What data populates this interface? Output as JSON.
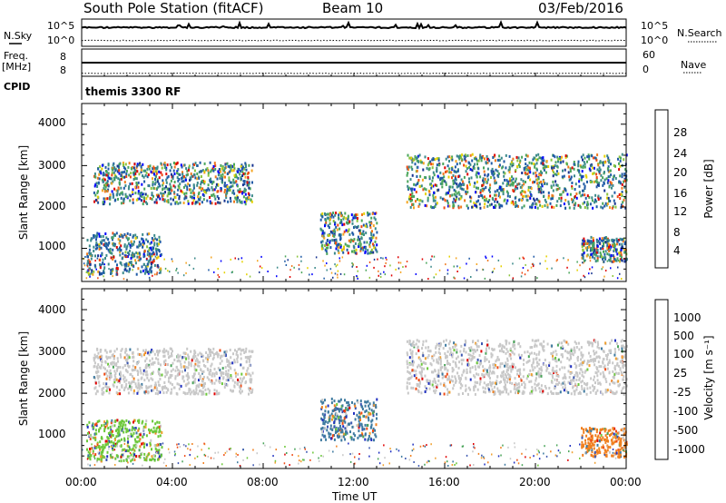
{
  "header": {
    "station": "South Pole Station (fitACF)",
    "beam": "Beam 10",
    "date": "03/Feb/2016"
  },
  "top_panels": {
    "nsky_label": "N.Sky",
    "nsky_tick_top": "10^5",
    "nsky_tick_bottom": "10^0",
    "nsearch_label": "N.Search",
    "nsearch_tick_top": "10^5",
    "nsearch_tick_bottom": "10^0",
    "freq_label": "Freq.",
    "freq_unit": "[MHz]",
    "freq_tick_top": "8",
    "freq_tick_bottom": "8",
    "nave_label": "Nave",
    "nave_tick_top": "60",
    "nave_tick_bottom": "0",
    "cpid_label": "CPID",
    "cpid_value": "themis 3300 RF"
  },
  "chart_data": [
    {
      "type": "heatmap",
      "panel": "power",
      "ylabel": "Slant Range [km]",
      "ylim": [
        200,
        4500
      ],
      "yticks": [
        "4000",
        "3000",
        "2000",
        "1000"
      ],
      "x_tick_labels": [
        "00:00",
        "04:00",
        "08:00",
        "12:00",
        "16:00",
        "20:00",
        "00:00"
      ],
      "colorbar": {
        "label": "Power [dB]",
        "tick_labels": [
          "28",
          "24",
          "20",
          "16",
          "12",
          "8",
          "4"
        ],
        "colors": [
          "#0000ff",
          "#17338f",
          "#1f5aa6",
          "#3c8a8a",
          "#4aa55a",
          "#8cc43c",
          "#e6d200",
          "#f5a623",
          "#f07a1e",
          "#ee4a14",
          "#e00000"
        ]
      },
      "echo_bands": [
        {
          "t_start": 0.5,
          "t_end": 7.5,
          "range_start": 2100,
          "range_end": 3100,
          "dominant": "mid"
        },
        {
          "t_start": 0.2,
          "t_end": 3.5,
          "range_start": 400,
          "range_end": 1400,
          "dominant": "low"
        },
        {
          "t_start": 10.5,
          "t_end": 13.0,
          "range_start": 900,
          "range_end": 1900,
          "dominant": "mid"
        },
        {
          "t_start": 14.3,
          "t_end": 24.0,
          "range_start": 2000,
          "range_end": 3300,
          "dominant": "mid"
        },
        {
          "t_start": 22.0,
          "t_end": 24.0,
          "range_start": 700,
          "range_end": 1300,
          "dominant": "mid"
        }
      ]
    },
    {
      "type": "heatmap",
      "panel": "velocity",
      "ylabel": "Slant Range [km]",
      "xlabel": "Time UT",
      "ylim": [
        200,
        4500
      ],
      "yticks": [
        "4000",
        "3000",
        "2000",
        "1000"
      ],
      "x_tick_labels": [
        "00:00",
        "04:00",
        "08:00",
        "12:00",
        "16:00",
        "20:00",
        "00:00"
      ],
      "colorbar": {
        "label": "Velocity [m s⁻¹]",
        "tick_labels": [
          "1000",
          "500",
          "100",
          "25",
          "-25",
          "-100",
          "-500",
          "-1000"
        ],
        "colors": [
          "#2030c0",
          "#3a56b0",
          "#3e7aa0",
          "#4aa55a",
          "#6cc83a",
          "#c8c8c8",
          "#c8c8c8",
          "#f0a030",
          "#f08020",
          "#ee4a14",
          "#e00000"
        ]
      },
      "echo_bands": [
        {
          "t_start": 0.5,
          "t_end": 7.5,
          "range_start": 2000,
          "range_end": 3100,
          "dominant": "grey"
        },
        {
          "t_start": 0.2,
          "t_end": 3.5,
          "range_start": 400,
          "range_end": 1400,
          "dominant": "green"
        },
        {
          "t_start": 10.5,
          "t_end": 13.0,
          "range_start": 900,
          "range_end": 1900,
          "dominant": "blue"
        },
        {
          "t_start": 14.3,
          "t_end": 24.0,
          "range_start": 2000,
          "range_end": 3300,
          "dominant": "grey"
        },
        {
          "t_start": 22.0,
          "t_end": 24.0,
          "range_start": 500,
          "range_end": 1200,
          "dominant": "orange"
        }
      ]
    }
  ]
}
